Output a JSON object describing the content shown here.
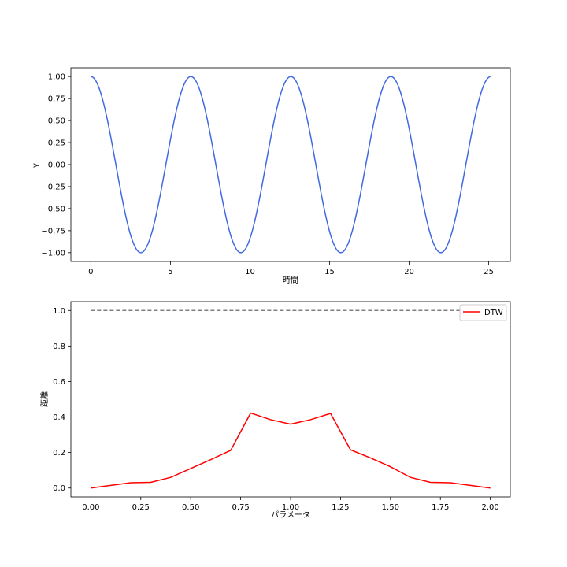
{
  "chart_data": [
    {
      "type": "line",
      "function": "cos",
      "x_range": [
        0,
        25.1
      ],
      "xlim": [
        -1.255,
        26.355
      ],
      "ylim": [
        -1.1,
        1.1
      ],
      "xticks": [
        0,
        5,
        10,
        15,
        20,
        25
      ],
      "xtick_labels": [
        "0",
        "5",
        "10",
        "15",
        "20",
        "25"
      ],
      "yticks": [
        1.0,
        0.75,
        0.5,
        0.25,
        0.0,
        -0.25,
        -0.5,
        -0.75,
        -1.0
      ],
      "ytick_labels": [
        "1.00",
        "0.75",
        "0.50",
        "0.25",
        "0.00",
        "−0.25",
        "−0.50",
        "−0.75",
        "−1.00"
      ],
      "xlabel": "時間",
      "ylabel": "y",
      "series": [
        {
          "color": "#4169e1"
        }
      ]
    },
    {
      "type": "line",
      "x": [
        0.0,
        0.1,
        0.2,
        0.3,
        0.4,
        0.5,
        0.6,
        0.7,
        0.8,
        0.9,
        1.0,
        1.1,
        1.2,
        1.3,
        1.4,
        1.5,
        1.6,
        1.7,
        1.8,
        1.9,
        2.0
      ],
      "xlim": [
        -0.1,
        2.1
      ],
      "ylim": [
        -0.05,
        1.05
      ],
      "xticks": [
        0.0,
        0.25,
        0.5,
        0.75,
        1.0,
        1.25,
        1.5,
        1.75,
        2.0
      ],
      "xtick_labels": [
        "0.00",
        "0.25",
        "0.50",
        "0.75",
        "1.00",
        "1.25",
        "1.50",
        "1.75",
        "2.00"
      ],
      "yticks": [
        0.0,
        0.2,
        0.4,
        0.6,
        0.8,
        1.0
      ],
      "ytick_labels": [
        "0.0",
        "0.2",
        "0.4",
        "0.6",
        "0.8",
        "1.0"
      ],
      "xlabel": "パラメータ",
      "ylabel": "距離",
      "legend_position": "top-right",
      "series": [
        {
          "name": "DTW",
          "color": "#ff0000",
          "values": [
            0.0,
            0.015,
            0.03,
            0.032,
            0.06,
            0.11,
            0.16,
            0.212,
            0.422,
            0.385,
            0.36,
            0.385,
            0.42,
            0.215,
            0.17,
            0.12,
            0.06,
            0.032,
            0.03,
            0.015,
            0.0
          ]
        }
      ],
      "reference_line": {
        "y": 1.0,
        "color": "#808080",
        "style": "dashed"
      }
    }
  ]
}
